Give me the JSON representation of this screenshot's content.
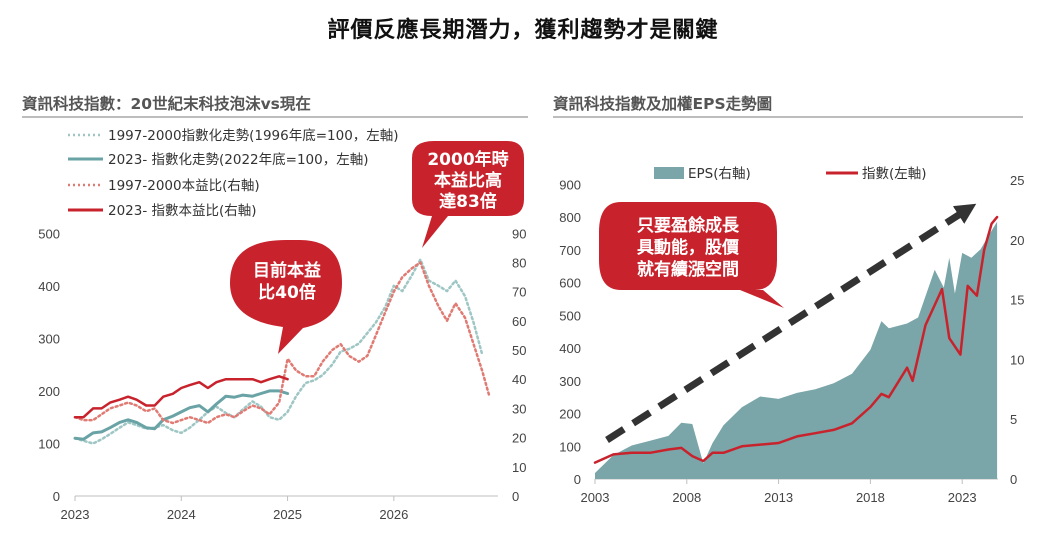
{
  "title": "評價反應長期潛力，獲利趨勢才是關鍵",
  "colors": {
    "red": "#c8232c",
    "teal": "#6aa3a6",
    "area": "#7aa5a9",
    "red_dotted": "#e07b74",
    "teal_dotted": "#9ec6c4"
  },
  "chart_data": [
    {
      "type": "line",
      "title": "資訊科技指數：20世紀末科技泡沫vs現在",
      "x_ticks": [
        "2023",
        "2024",
        "2025",
        "2026"
      ],
      "y_left": {
        "ticks": [
          "0",
          "100",
          "200",
          "300",
          "400",
          "500"
        ],
        "range": [
          0,
          550
        ]
      },
      "y_right": {
        "ticks": [
          "0",
          "10",
          "20",
          "30",
          "40",
          "50",
          "60",
          "70",
          "80",
          "90"
        ],
        "range": [
          0,
          99
        ]
      },
      "legend": [
        "1997-2000指數化走勢(1996年底=100，左軸)",
        "2023- 指數化走勢(2022年底=100，左軸)",
        "1997-2000本益比(右軸)",
        "2023- 指數本益比(右軸)"
      ],
      "series": [
        {
          "name": "1997-2000指數化走勢(1996年底=100，左軸)",
          "axis": "left",
          "style": "dotted-teal",
          "x": [
            2023.0,
            2023.08,
            2023.17,
            2023.25,
            2023.33,
            2023.42,
            2023.5,
            2023.58,
            2023.67,
            2023.75,
            2023.83,
            2023.92,
            2024.0,
            2024.08,
            2024.17,
            2024.25,
            2024.33,
            2024.42,
            2024.5,
            2024.58,
            2024.67,
            2024.75,
            2024.83,
            2024.92,
            2025.0,
            2025.08,
            2025.17,
            2025.25,
            2025.33,
            2025.42,
            2025.5,
            2025.58,
            2025.67,
            2025.75,
            2025.83,
            2025.92,
            2026.0,
            2026.08,
            2026.17,
            2026.25,
            2026.33,
            2026.42,
            2026.5,
            2026.58,
            2026.67,
            2026.75,
            2026.83
          ],
          "y": [
            110,
            105,
            100,
            108,
            118,
            130,
            140,
            135,
            128,
            130,
            135,
            125,
            120,
            130,
            145,
            160,
            170,
            158,
            150,
            165,
            180,
            170,
            150,
            145,
            160,
            190,
            215,
            220,
            230,
            250,
            275,
            280,
            290,
            310,
            330,
            360,
            400,
            390,
            420,
            450,
            410,
            400,
            390,
            410,
            380,
            330,
            270
          ]
        },
        {
          "name": "2023- 指數化走勢(2022年底=100，左軸)",
          "axis": "left",
          "style": "solid-teal",
          "x": [
            2023.0,
            2023.08,
            2023.17,
            2023.25,
            2023.33,
            2023.42,
            2023.5,
            2023.58,
            2023.67,
            2023.75,
            2023.83,
            2023.92,
            2024.0,
            2024.08,
            2024.17,
            2024.25,
            2024.33,
            2024.42,
            2024.5,
            2024.58,
            2024.67,
            2024.75,
            2024.83,
            2024.92,
            2025.0
          ],
          "y": [
            110,
            108,
            120,
            122,
            130,
            140,
            145,
            140,
            130,
            128,
            145,
            152,
            160,
            168,
            172,
            160,
            175,
            190,
            188,
            192,
            190,
            195,
            200,
            200,
            195
          ]
        },
        {
          "name": "1997-2000本益比(右軸)",
          "axis": "right",
          "style": "dotted-red",
          "x": [
            2023.0,
            2023.08,
            2023.17,
            2023.25,
            2023.33,
            2023.42,
            2023.5,
            2023.58,
            2023.67,
            2023.75,
            2023.83,
            2023.92,
            2024.0,
            2024.08,
            2024.17,
            2024.25,
            2024.33,
            2024.42,
            2024.5,
            2024.58,
            2024.67,
            2024.75,
            2024.83,
            2024.92,
            2025.0,
            2025.08,
            2025.17,
            2025.25,
            2025.33,
            2025.42,
            2025.5,
            2025.58,
            2025.67,
            2025.75,
            2025.83,
            2025.92,
            2026.0,
            2026.08,
            2026.17,
            2026.25,
            2026.33,
            2026.42,
            2026.5,
            2026.58,
            2026.67,
            2026.75,
            2026.83,
            2026.9
          ],
          "y": [
            27,
            26,
            26,
            28,
            30,
            31,
            32,
            31,
            29,
            30,
            26,
            25,
            26,
            27,
            26,
            25,
            27,
            28,
            27,
            29,
            31,
            30,
            28,
            32,
            47,
            43,
            41,
            41,
            46,
            50,
            52,
            48,
            46,
            48,
            55,
            63,
            70,
            75,
            78,
            80,
            72,
            65,
            60,
            66,
            61,
            52,
            43,
            34
          ]
        },
        {
          "name": "2023- 指數本益比(右軸)",
          "axis": "right",
          "style": "solid-red",
          "x": [
            2023.0,
            2023.08,
            2023.17,
            2023.25,
            2023.33,
            2023.42,
            2023.5,
            2023.58,
            2023.67,
            2023.75,
            2023.83,
            2023.92,
            2024.0,
            2024.08,
            2024.17,
            2024.25,
            2024.33,
            2024.42,
            2024.5,
            2024.58,
            2024.67,
            2024.75,
            2024.83,
            2024.92,
            2025.0
          ],
          "y": [
            27,
            27,
            30,
            30,
            32,
            33,
            34,
            33,
            31,
            31,
            34,
            35,
            37,
            38,
            39,
            37,
            39,
            40,
            40,
            40,
            40,
            39,
            40,
            41,
            40
          ]
        }
      ],
      "annotations": [
        "2000年時本益比高達83倍",
        "目前本益比40倍"
      ]
    },
    {
      "type": "line+area",
      "title": "資訊科技指數及加權EPS走勢圖",
      "x_ticks": [
        "2003",
        "2008",
        "2013",
        "2018",
        "2023"
      ],
      "y_left": {
        "ticks": [
          "0",
          "100",
          "200",
          "300",
          "400",
          "500",
          "600",
          "700",
          "800",
          "900"
        ],
        "range": [
          0,
          950
        ]
      },
      "y_right": {
        "ticks": [
          "0",
          "5",
          "10",
          "15",
          "20",
          "25"
        ],
        "range": [
          0,
          26
        ]
      },
      "legend": [
        "EPS(右軸)",
        "指數(左軸)"
      ],
      "series": [
        {
          "name": "EPS(右軸)",
          "axis": "right",
          "style": "area",
          "x": [
            2003.0,
            2004.0,
            2005.0,
            2006.0,
            2007.0,
            2007.7,
            2008.3,
            2008.9,
            2009.4,
            2010.0,
            2011.0,
            2012.0,
            2013.0,
            2014.0,
            2015.0,
            2016.0,
            2017.0,
            2018.0,
            2018.6,
            2019.0,
            2020.0,
            2020.6,
            2021.5,
            2022.0,
            2022.3,
            2022.6,
            2023.0,
            2023.5,
            2024.0,
            2024.5,
            2024.9
          ],
          "y": [
            0.5,
            2.0,
            2.8,
            3.2,
            3.6,
            4.7,
            4.6,
            1.3,
            3.0,
            4.5,
            6.0,
            6.9,
            6.7,
            7.2,
            7.5,
            8.0,
            8.8,
            10.8,
            13.2,
            12.6,
            13.0,
            13.5,
            17.5,
            16.0,
            18.5,
            15.5,
            18.9,
            18.5,
            19.2,
            20.5,
            21.5
          ]
        },
        {
          "name": "指數(左軸)",
          "axis": "left",
          "style": "solid-red",
          "x": [
            2003.0,
            2004.0,
            2005.0,
            2006.0,
            2007.0,
            2007.7,
            2008.3,
            2008.9,
            2009.4,
            2010.0,
            2011.0,
            2012.0,
            2013.0,
            2014.0,
            2015.0,
            2016.0,
            2017.0,
            2018.0,
            2018.6,
            2019.0,
            2020.0,
            2020.3,
            2021.0,
            2021.9,
            2022.3,
            2022.9,
            2023.3,
            2023.8,
            2024.2,
            2024.6,
            2024.9
          ],
          "y": [
            50,
            75,
            80,
            80,
            90,
            95,
            70,
            55,
            80,
            80,
            100,
            105,
            110,
            130,
            140,
            150,
            170,
            220,
            260,
            250,
            340,
            300,
            470,
            580,
            430,
            380,
            590,
            560,
            700,
            780,
            800
          ]
        }
      ],
      "annotations": [
        "只要盈餘成長具動能，股價就有續漲空間"
      ]
    }
  ]
}
